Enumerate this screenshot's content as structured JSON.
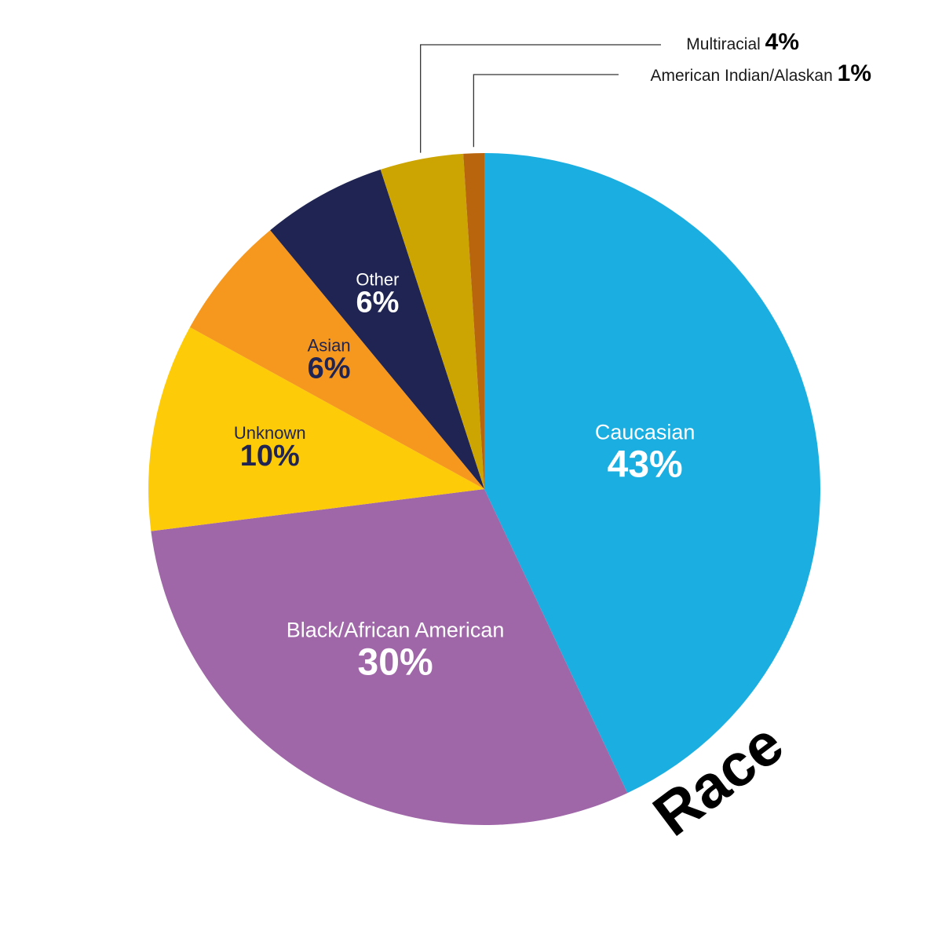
{
  "chart_data": {
    "type": "pie",
    "title": "Race",
    "slices": [
      {
        "label": "Caucasian",
        "value": 43,
        "value_label": "43%",
        "color": "#1BAEE0",
        "text_color": "#ffffff"
      },
      {
        "label": "Black/African American",
        "value": 30,
        "value_label": "30%",
        "color": "#9F66A8",
        "text_color": "#ffffff"
      },
      {
        "label": "Unknown",
        "value": 10,
        "value_label": "10%",
        "color": "#FDCB08",
        "text_color": "#1F2452"
      },
      {
        "label": "Asian",
        "value": 6,
        "value_label": "6%",
        "color": "#F7981E",
        "text_color": "#1F2452"
      },
      {
        "label": "Other",
        "value": 6,
        "value_label": "6%",
        "color": "#1F2452",
        "text_color": "#ffffff"
      },
      {
        "label": "Multiracial",
        "value": 4,
        "value_label": "4%",
        "color": "#CCA502",
        "text_color": "#000000"
      },
      {
        "label": "American Indian/Alaskan",
        "value": 1,
        "value_label": "1%",
        "color": "#B9650E",
        "text_color": "#000000"
      }
    ]
  }
}
